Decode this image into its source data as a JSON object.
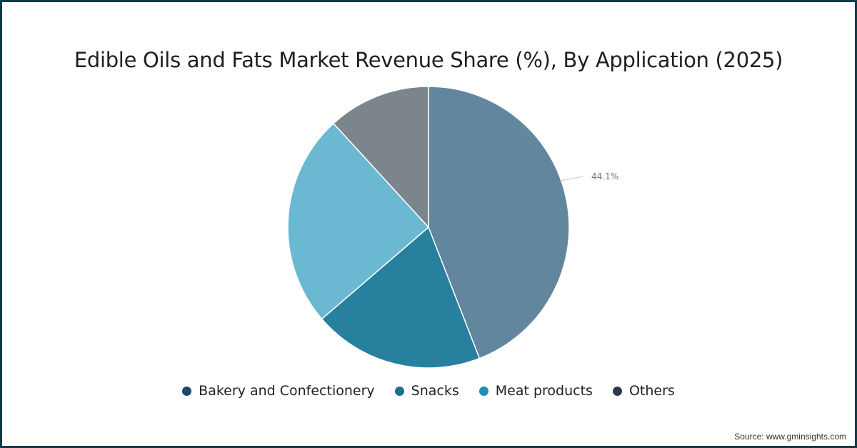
{
  "chart_data": {
    "type": "pie",
    "title": "Edible Oils and Fats Market Revenue Share (%), By Application (2025)",
    "categories": [
      "Bakery and Confectionery",
      "Snacks",
      "Meat products",
      "Others"
    ],
    "values": [
      44.1,
      19.6,
      24.5,
      11.8
    ],
    "slice_colors": [
      "#62869e",
      "#27809e",
      "#6bb8d3",
      "#7c848c"
    ],
    "legend_colors": [
      "#1a4a6b",
      "#1f6e8c",
      "#1a8fb5",
      "#2d3a4a"
    ],
    "data_labels": [
      "44.1%",
      null,
      null,
      null
    ],
    "legend_position": "bottom"
  },
  "source": "Source: www.gminsights.com"
}
